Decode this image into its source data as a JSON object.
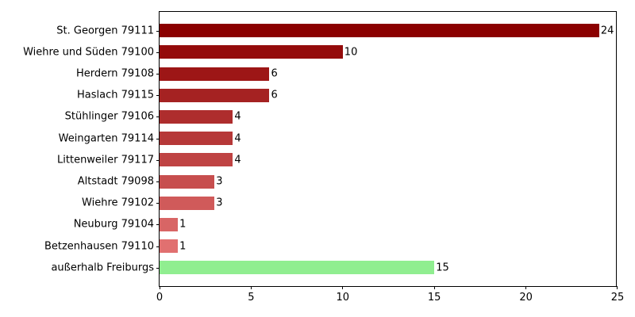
{
  "chart_data": {
    "type": "bar",
    "orientation": "horizontal",
    "title": "",
    "xlabel": "",
    "ylabel": "",
    "xlim": [
      0,
      25
    ],
    "xticks": [
      "0",
      "5",
      "10",
      "15",
      "20",
      "25"
    ],
    "xtick_values": [
      0,
      5,
      10,
      15,
      20,
      25
    ],
    "grid": false,
    "legend_position": "none",
    "categories": [
      "St. Georgen 79111",
      "Wiehre und Süden 79100",
      "Herdern 79108",
      "Haslach 79115",
      "Stühlinger 79106",
      "Weingarten 79114",
      "Littenweiler 79117",
      "Altstadt 79098",
      "Wiehre 79102",
      "Neuburg 79104",
      "Betzenhausen 79110",
      "außerhalb Freiburgs"
    ],
    "values": [
      24,
      10,
      6,
      6,
      4,
      4,
      4,
      3,
      3,
      1,
      1,
      15
    ],
    "value_labels": [
      "24",
      "10",
      "6",
      "6",
      "4",
      "4",
      "4",
      "3",
      "3",
      "1",
      "1",
      "15"
    ],
    "bar_colors": [
      "#8b0000",
      "#940b0b",
      "#9d1616",
      "#a52222",
      "#ae2d2d",
      "#b63838",
      "#bf4343",
      "#c74e4e",
      "#d05a5a",
      "#d86565",
      "#e17070",
      "#90ee90"
    ],
    "colors": {
      "spine": "#000000",
      "text": "#000000",
      "background": "#ffffff",
      "highlight_green": "#90ee90",
      "darkest_red": "#8b0000"
    }
  }
}
